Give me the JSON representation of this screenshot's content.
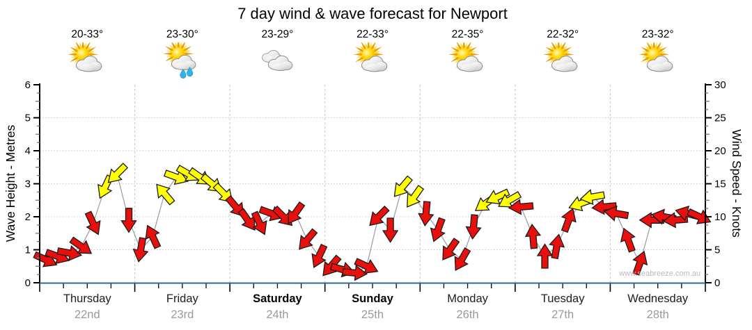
{
  "title": "7 day wind & wave forecast for Newport",
  "watermark": "www.seabreeze.com.au",
  "axes": {
    "left": {
      "label": "Wave Height - Metres",
      "ticks": [
        "0",
        "1",
        "2",
        "3",
        "4",
        "5",
        "6"
      ]
    },
    "right": {
      "label": "Wind Speed - Knots",
      "ticks": [
        "0",
        "5",
        "10",
        "15",
        "20",
        "25",
        "30"
      ]
    }
  },
  "days": [
    {
      "name": "Thursday",
      "date": "22nd",
      "temp": "20-33°",
      "icon": "sun-cloud",
      "weekend": false
    },
    {
      "name": "Friday",
      "date": "23rd",
      "temp": "23-30°",
      "icon": "sun-cloud-rain",
      "weekend": false
    },
    {
      "name": "Saturday",
      "date": "24th",
      "temp": "23-29°",
      "icon": "clouds",
      "weekend": true
    },
    {
      "name": "Sunday",
      "date": "25th",
      "temp": "22-33°",
      "icon": "sun-cloud",
      "weekend": true
    },
    {
      "name": "Monday",
      "date": "26th",
      "temp": "22-35°",
      "icon": "sun-cloud",
      "weekend": false
    },
    {
      "name": "Tuesday",
      "date": "27th",
      "temp": "22-32°",
      "icon": "sun-cloud",
      "weekend": false
    },
    {
      "name": "Wednesday",
      "date": "28th",
      "temp": "23-32°",
      "icon": "sun-cloud",
      "weekend": false
    }
  ],
  "colors": {
    "light_wind_arrow": "#e8100c",
    "moderate_wind_arrow": "#ffff00",
    "arrow_outline": "#1a1a1a",
    "axis_line": "#000000",
    "bottom_axis_line": "#33658d",
    "grid_line": "#c3c3c3",
    "trend_line": "#9a9a9a"
  },
  "chart_data": {
    "type": "wind-arrows-line",
    "title": "7 day wind & wave forecast for Newport",
    "categories": [
      "Thursday",
      "Friday",
      "Saturday",
      "Sunday",
      "Monday",
      "Tuesday",
      "Wednesday"
    ],
    "interval_hours": 3,
    "points_per_day": 8,
    "wave_axis": {
      "label": "Wave Height - Metres",
      "range": [
        0,
        6
      ]
    },
    "wind_axis": {
      "label": "Wind Speed - Knots",
      "range": [
        0,
        30
      ]
    },
    "color_rule": {
      "red_below_knots": 12,
      "yellow_at_or_above_knots": 12
    },
    "speeds_knots": [
      3.5,
      4,
      4.5,
      5.5,
      9,
      14.5,
      16.5,
      9.5,
      5,
      7,
      13.5,
      16,
      16.5,
      16,
      15,
      13.5,
      11.5,
      9.5,
      9,
      10.5,
      10,
      10.5,
      6.5,
      4,
      2.5,
      2,
      1.5,
      2.5,
      10,
      8,
      14.5,
      13,
      10.5,
      8,
      5,
      3.5,
      8.5,
      12,
      13,
      12.5,
      11.5,
      7,
      4,
      5.5,
      9.5,
      12,
      13,
      11.5,
      10.5,
      6.5,
      3,
      9.5,
      10,
      9.5,
      10.5,
      10
    ],
    "directions_deg_toward": [
      115,
      110,
      100,
      125,
      155,
      205,
      225,
      180,
      190,
      335,
      320,
      110,
      120,
      125,
      130,
      135,
      140,
      145,
      155,
      110,
      135,
      215,
      220,
      205,
      220,
      105,
      95,
      115,
      225,
      180,
      220,
      215,
      185,
      200,
      215,
      210,
      185,
      235,
      245,
      240,
      265,
      355,
      0,
      10,
      20,
      250,
      260,
      265,
      280,
      340,
      20,
      270,
      280,
      265,
      285,
      115
    ]
  }
}
